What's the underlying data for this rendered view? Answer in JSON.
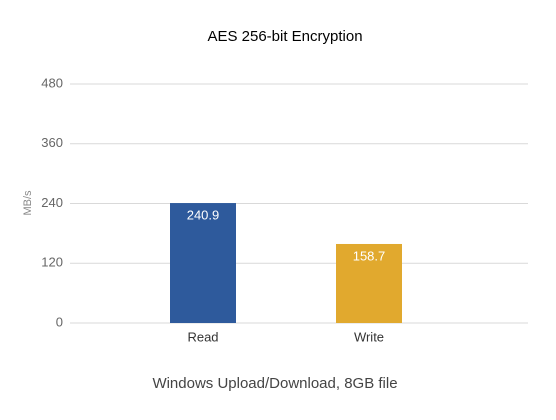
{
  "chart_data": {
    "type": "bar",
    "title": "AES 256-bit Encryption",
    "y_label": "MB/s",
    "x_label": "Windows Upload/Download, 8GB file",
    "categories": [
      "Read",
      "Write"
    ],
    "values": [
      240.9,
      158.7
    ],
    "colors": [
      "#2e5a9c",
      "#e1a92e"
    ],
    "ylim": [
      0,
      480
    ],
    "yticks": [
      0,
      120,
      240,
      360,
      480
    ],
    "grid": true
  }
}
